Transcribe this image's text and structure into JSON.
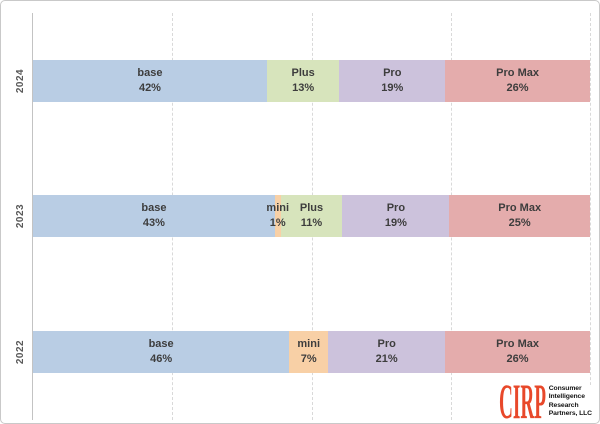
{
  "chart_data": {
    "type": "bar",
    "orientation": "horizontal",
    "stacked": true,
    "title": "",
    "xlabel": "",
    "ylabel": "",
    "categories": [
      "2024",
      "2023",
      "2022"
    ],
    "series": [
      {
        "name": "base",
        "values": [
          42,
          43,
          46
        ]
      },
      {
        "name": "mini",
        "values": [
          0,
          1,
          7
        ]
      },
      {
        "name": "Plus",
        "values": [
          13,
          11,
          0
        ]
      },
      {
        "name": "Pro",
        "values": [
          19,
          19,
          21
        ]
      },
      {
        "name": "Pro Max",
        "values": [
          26,
          25,
          26
        ]
      }
    ],
    "series_colors": {
      "base": "#b9cde4",
      "mini": "#f8d0a6",
      "Plus": "#d7e4bc",
      "Pro": "#ccc2dc",
      "Pro Max": "#e4acac"
    },
    "data_label_format": "name on first line, percent on second line, inside segment",
    "xlim": [
      0,
      100
    ],
    "gridline_pcts": [
      25,
      50,
      75,
      100
    ],
    "grid_style": "vertical dashed light gray",
    "legend": "none"
  },
  "labels": {
    "percent_suffix": "%"
  },
  "logo": {
    "brand": "CIRP",
    "brand_color": "#e8482a",
    "lines": [
      "Consumer",
      "Intelligence",
      "Research",
      "Partners, LLC"
    ]
  }
}
